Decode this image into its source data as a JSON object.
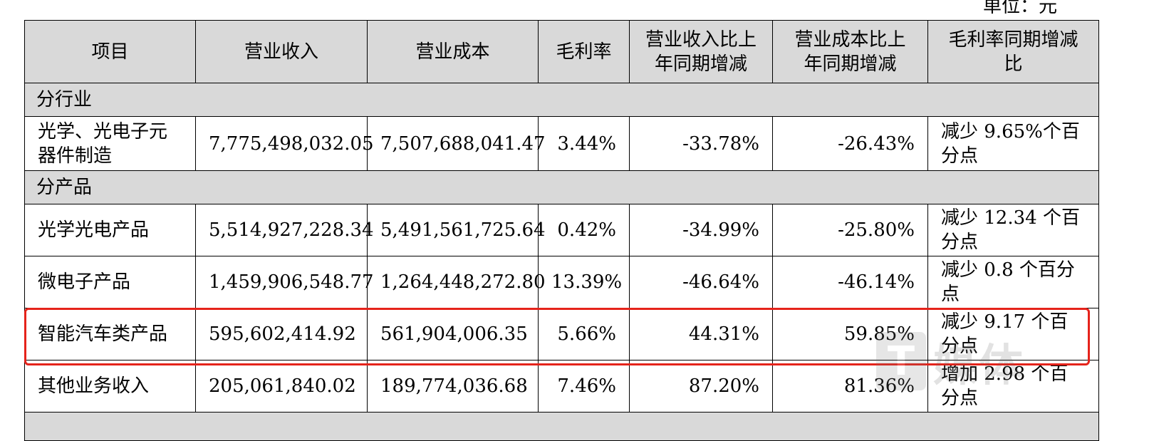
{
  "unit_label": "单位：元",
  "headers": [
    "项目",
    "营业收入",
    "营业成本",
    "毛利率",
    "营业收入比上年同期增减",
    "营业成本比上年同期增减",
    "毛利率同期增减比"
  ],
  "sections": {
    "by_industry": "分行业",
    "by_product": "分产品"
  },
  "rows": [
    {
      "name": "光学、光电子元器件制造",
      "revenue": "7,775,498,032.05",
      "cost": "7,507,688,041.47",
      "margin": "3.44%",
      "rev_yoy": "-33.78%",
      "cost_yoy": "-26.43%",
      "margin_change": "减少 9.65%个百分点"
    },
    {
      "name": "光学光电产品",
      "revenue": "5,514,927,228.34",
      "cost": "5,491,561,725.64",
      "margin": "0.42%",
      "rev_yoy": "-34.99%",
      "cost_yoy": "-25.80%",
      "margin_change": "减少 12.34 个百分点"
    },
    {
      "name": "微电子产品",
      "revenue": "1,459,906,548.77",
      "cost": "1,264,448,272.80",
      "margin": "13.39%",
      "rev_yoy": "-46.64%",
      "cost_yoy": "-46.14%",
      "margin_change": "减少 0.8 个百分点"
    },
    {
      "name": "智能汽车类产品",
      "revenue": "595,602,414.92",
      "cost": "561,904,006.35",
      "margin": "5.66%",
      "rev_yoy": "44.31%",
      "cost_yoy": "59.85%",
      "margin_change": "减少 9.17 个百分点"
    },
    {
      "name": "其他业务收入",
      "revenue": "205,061,840.02",
      "cost": "189,774,036.68",
      "margin": "7.46%",
      "rev_yoy": "87.20%",
      "cost_yoy": "81.36%",
      "margin_change": "增加 2.98 个百分点"
    }
  ],
  "highlight_color": "#e5231b",
  "watermark": "T 媒体"
}
